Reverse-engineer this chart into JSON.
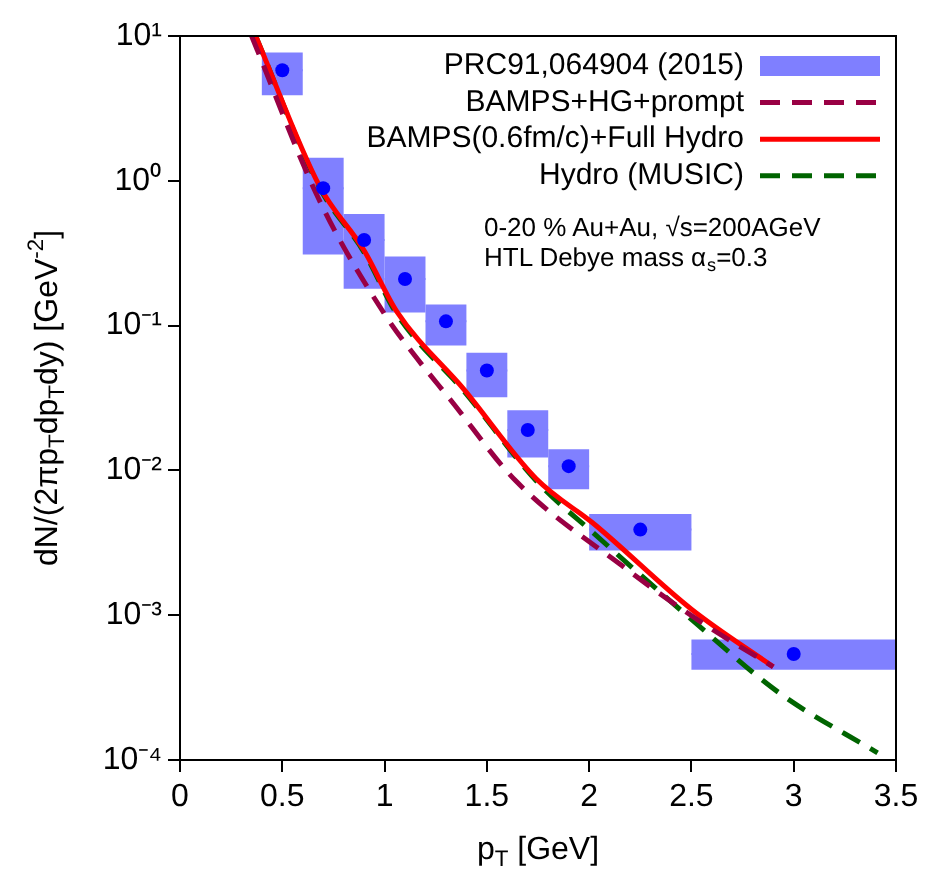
{
  "chart_data": {
    "type": "line",
    "xlabel": "p$_{T}$ [GeV]",
    "ylabel": "dN/(2πp$_{T}$dp$_{T}$dy) [GeV$^{-2}$]",
    "xlim": [
      0,
      3.5
    ],
    "xticks": [
      0,
      0.5,
      1,
      1.5,
      2,
      2.5,
      3,
      3.5
    ],
    "ylim": [
      0.0001,
      10
    ],
    "yticks": [
      {
        "value": 10,
        "label": "10¹"
      },
      {
        "value": 1,
        "label": "10⁰"
      },
      {
        "value": 0.1,
        "label": "10⁻¹"
      },
      {
        "value": 0.01,
        "label": "10⁻²"
      },
      {
        "value": 0.001,
        "label": "10⁻³"
      },
      {
        "value": 0.0001,
        "label": "10⁻⁴"
      }
    ],
    "log": "y",
    "grid": false,
    "legend": "top right",
    "annotations": [
      "0-20 % Au+Au, √s=200AGeV",
      "HTL Debye mass α$_{s}$=0.3"
    ],
    "series": [
      {
        "name": "PRC91,064904 (2015)",
        "type": "scatter",
        "marker": "circle",
        "color": "#0000ff",
        "x": [
          0.5,
          0.7,
          0.9,
          1.1,
          1.3,
          1.5,
          1.7,
          1.9,
          2.25,
          3.0
        ],
        "values": [
          5.8,
          0.89,
          0.39,
          0.21,
          0.107,
          0.049,
          0.019,
          0.0107,
          0.0039,
          0.00054
        ],
        "xerrors": [
          [
            0.4,
            0.6
          ],
          [
            0.6,
            0.8
          ],
          [
            0.8,
            1.0
          ],
          [
            1.0,
            1.2
          ],
          [
            1.2,
            1.4
          ],
          [
            1.4,
            1.6
          ],
          [
            1.6,
            1.8
          ],
          [
            1.8,
            2.0
          ],
          [
            2.0,
            2.5
          ],
          [
            2.5,
            3.5
          ]
        ],
        "errors": [
          [
            3.9,
            7.7
          ],
          [
            0.31,
            1.44
          ],
          [
            0.18,
            0.59
          ],
          [
            0.123,
            0.3
          ],
          [
            0.073,
            0.14
          ],
          [
            0.032,
            0.065
          ],
          [
            0.0123,
            0.026
          ],
          [
            0.0074,
            0.014
          ],
          [
            0.0028,
            0.005
          ],
          [
            0.00042,
            0.00068
          ]
        ]
      },
      {
        "name": "BAMPS+HG+prompt",
        "type": "line",
        "marker": "none",
        "line_style": "dashed",
        "color": "#990044",
        "x": [
          0.35,
          0.68,
          1.0,
          1.16,
          1.32,
          1.64,
          2.16,
          2.54,
          2.9
        ],
        "values": [
          10,
          0.74,
          0.12,
          0.059,
          0.031,
          0.0085,
          0.0022,
          0.00091,
          0.00044
        ]
      },
      {
        "name": "BAMPS(0.6fm/c)+Full Hydro",
        "type": "line",
        "marker": "none",
        "line_style": "solid",
        "color": "#ff0000",
        "x": [
          0.37,
          0.68,
          0.9,
          1.06,
          1.39,
          1.74,
          2.03,
          2.5,
          2.9
        ],
        "values": [
          10,
          0.93,
          0.33,
          0.125,
          0.036,
          0.0088,
          0.0042,
          0.0011,
          0.00044
        ]
      },
      {
        "name": "Hydro (MUSIC)",
        "type": "line",
        "marker": "none",
        "line_style": "dashed",
        "color": "#006400",
        "x": [
          0.37,
          0.68,
          0.9,
          1.06,
          1.39,
          1.74,
          2.03,
          2.51,
          2.93,
          3.41
        ],
        "values": [
          10,
          0.91,
          0.32,
          0.12,
          0.035,
          0.0085,
          0.0036,
          0.00091,
          0.00029,
          0.000112
        ]
      }
    ]
  }
}
